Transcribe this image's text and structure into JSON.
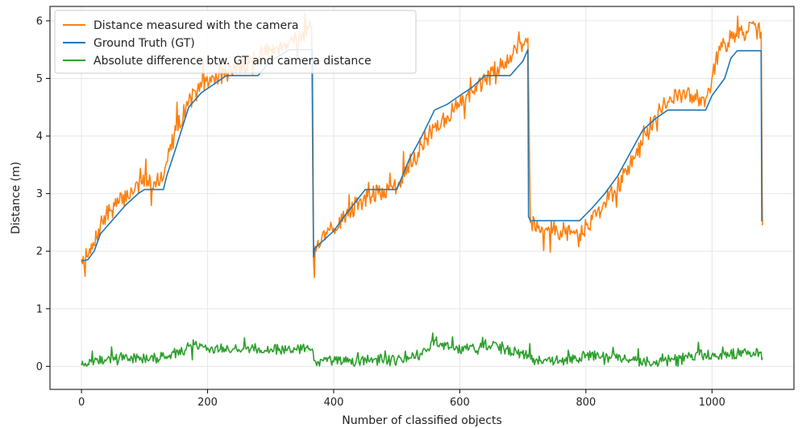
{
  "chart_data": {
    "type": "line",
    "title": "",
    "xlabel": "Number of classified objects",
    "ylabel": "Distance (m)",
    "xlim": [
      -50,
      1130
    ],
    "ylim": [
      -0.4,
      6.25
    ],
    "xticks": [
      0,
      200,
      400,
      600,
      800,
      1000
    ],
    "yticks": [
      0,
      1,
      2,
      3,
      4,
      5,
      6
    ],
    "grid": true,
    "legend_position": "top-left",
    "series": [
      {
        "name": "Distance measured with the camera",
        "color": "#ff7f0e",
        "noise": "high",
        "x": [
          0,
          10,
          20,
          30,
          45,
          60,
          80,
          95,
          105,
          115,
          125,
          135,
          150,
          170,
          190,
          210,
          230,
          250,
          270,
          290,
          310,
          330,
          350,
          365,
          368,
          372,
          380,
          400,
          420,
          440,
          460,
          480,
          500,
          520,
          540,
          560,
          580,
          600,
          620,
          640,
          660,
          680,
          700,
          708,
          712,
          730,
          760,
          790,
          810,
          830,
          850,
          870,
          890,
          910,
          930,
          950,
          970,
          990,
          1000,
          1010,
          1030,
          1050,
          1070,
          1078,
          1080
        ],
        "y": [
          1.86,
          1.9,
          2.1,
          2.45,
          2.7,
          2.85,
          3.05,
          3.18,
          3.22,
          3.2,
          3.25,
          3.55,
          4.1,
          4.6,
          4.85,
          5.0,
          5.1,
          5.2,
          5.3,
          5.45,
          5.55,
          5.65,
          5.75,
          5.85,
          1.85,
          2.0,
          2.15,
          2.4,
          2.65,
          2.85,
          2.95,
          3.05,
          3.1,
          3.55,
          3.85,
          4.15,
          4.35,
          4.55,
          4.75,
          4.95,
          5.2,
          5.4,
          5.6,
          5.7,
          2.5,
          2.42,
          2.35,
          2.3,
          2.55,
          2.85,
          3.1,
          3.5,
          3.85,
          4.35,
          4.6,
          4.7,
          4.7,
          4.65,
          5.0,
          5.45,
          5.7,
          5.8,
          5.85,
          5.8,
          2.45
        ]
      },
      {
        "name": "Ground Truth (GT)",
        "color": "#1f77b4",
        "noise": "none",
        "x": [
          0,
          10,
          20,
          30,
          50,
          70,
          90,
          100,
          130,
          135,
          150,
          170,
          190,
          210,
          230,
          280,
          300,
          330,
          366,
          368,
          370,
          400,
          420,
          450,
          500,
          505,
          520,
          540,
          560,
          580,
          600,
          620,
          640,
          680,
          700,
          708,
          709,
          712,
          790,
          810,
          830,
          850,
          870,
          890,
          910,
          930,
          990,
          1000,
          1020,
          1030,
          1040,
          1078,
          1079
        ],
        "y": [
          1.83,
          1.85,
          2.0,
          2.3,
          2.55,
          2.8,
          3.0,
          3.07,
          3.07,
          3.3,
          3.8,
          4.5,
          4.75,
          4.9,
          5.05,
          5.05,
          5.3,
          5.5,
          5.5,
          1.9,
          2.05,
          2.35,
          2.65,
          3.07,
          3.07,
          3.2,
          3.6,
          4.0,
          4.45,
          4.55,
          4.7,
          4.85,
          5.05,
          5.05,
          5.3,
          5.5,
          2.6,
          2.53,
          2.53,
          2.75,
          3.0,
          3.3,
          3.7,
          4.1,
          4.3,
          4.45,
          4.45,
          4.7,
          5.0,
          5.35,
          5.48,
          5.48,
          2.52
        ]
      },
      {
        "name": "Absolute difference btw. GT and camera distance",
        "color": "#2ca02c",
        "noise": "medium",
        "x": [
          0,
          10,
          20,
          40,
          60,
          80,
          100,
          120,
          140,
          160,
          170,
          180,
          200,
          220,
          240,
          260,
          280,
          300,
          320,
          340,
          360,
          366,
          370,
          400,
          440,
          460,
          480,
          500,
          520,
          540,
          550,
          560,
          570,
          590,
          610,
          630,
          650,
          670,
          690,
          708,
          720,
          760,
          790,
          800,
          820,
          840,
          860,
          880,
          900,
          920,
          940,
          960,
          980,
          1000,
          1020,
          1040,
          1060,
          1078,
          1080
        ],
        "y": [
          0.02,
          0.04,
          0.08,
          0.12,
          0.15,
          0.15,
          0.14,
          0.15,
          0.2,
          0.25,
          0.35,
          0.38,
          0.32,
          0.3,
          0.3,
          0.32,
          0.3,
          0.3,
          0.3,
          0.3,
          0.3,
          0.3,
          0.1,
          0.08,
          0.08,
          0.15,
          0.12,
          0.1,
          0.15,
          0.2,
          0.3,
          0.45,
          0.4,
          0.32,
          0.3,
          0.3,
          0.35,
          0.3,
          0.25,
          0.2,
          0.1,
          0.1,
          0.15,
          0.2,
          0.18,
          0.15,
          0.12,
          0.1,
          0.08,
          0.08,
          0.12,
          0.18,
          0.2,
          0.2,
          0.2,
          0.22,
          0.25,
          0.25,
          0.15
        ]
      }
    ]
  }
}
